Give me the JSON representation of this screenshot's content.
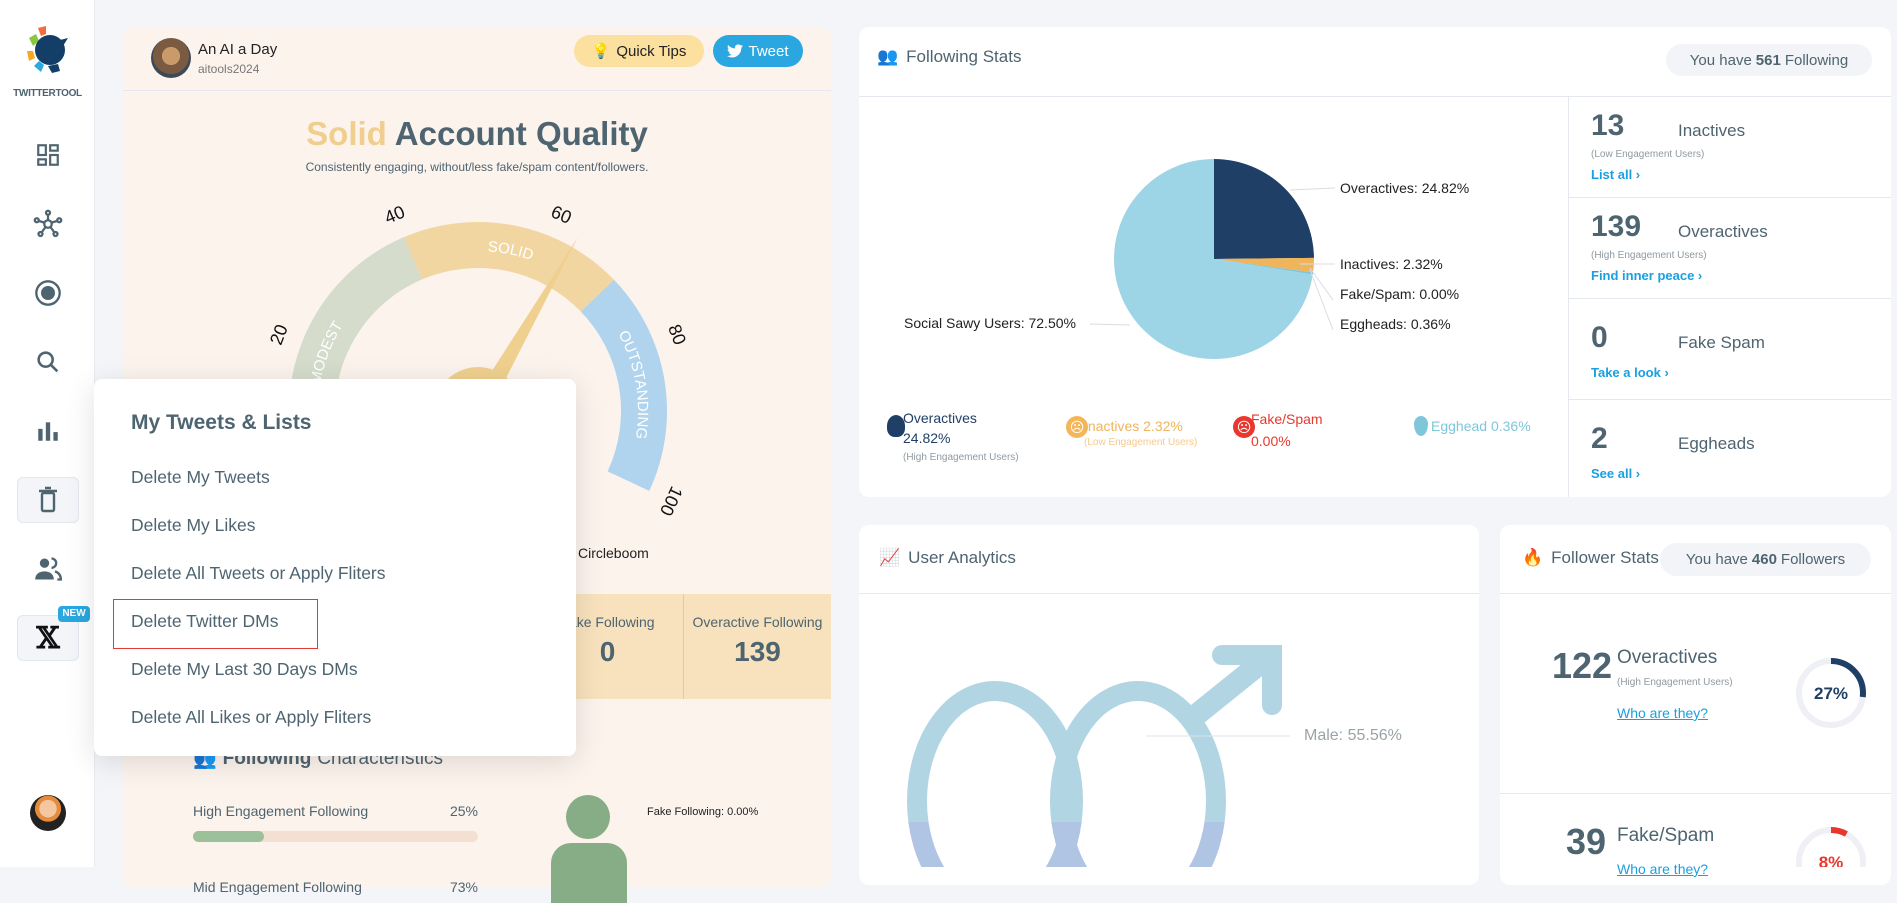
{
  "sidebar": {
    "logo_text": "TWITTERTOOL",
    "new_badge": "NEW",
    "items": [
      "dashboard",
      "network",
      "circle",
      "search",
      "analytics",
      "delete",
      "users",
      "x"
    ]
  },
  "profile": {
    "name": "An AI a Day",
    "handle": "aitools2024",
    "quick_tips": "Quick Tips",
    "tweet": "Tweet"
  },
  "quality": {
    "word": "Solid",
    "title": "Account Quality",
    "subtitle": "Consistently engaging, without/less fake/spam content/followers.",
    "powered": "Circleboom"
  },
  "gauge": {
    "value": 63,
    "ticks": [
      "20",
      "40",
      "60",
      "80",
      "100"
    ],
    "segments": [
      {
        "label": "MODEST",
        "from": 0,
        "to": 40,
        "color": "#d5dccb"
      },
      {
        "label": "SOLID",
        "from": 40,
        "to": 70,
        "color": "#f2d6a2"
      },
      {
        "label": "OUTSTANDING",
        "from": 70,
        "to": 100,
        "color": "#b0d3ee"
      }
    ]
  },
  "quality_stats": [
    {
      "label": "Fake Following",
      "value": "0"
    },
    {
      "label": "Overactive Following",
      "value": "139"
    }
  ],
  "characteristics": {
    "title_bold": "Following",
    "title_rest": "Characteristics",
    "rows": [
      {
        "label": "High Engagement Following",
        "pct": "25%",
        "value": 25
      },
      {
        "label": "Mid Engagement Following",
        "pct": "73%",
        "value": 73
      }
    ],
    "fake_label": "Fake Following: 0.00%"
  },
  "popup": {
    "title": "My Tweets & Lists",
    "items": [
      "Delete My Tweets",
      "Delete My Likes",
      "Delete All Tweets or Apply Fliters",
      "Delete Twitter DMs",
      "Delete My Last 30 Days DMs",
      "Delete All Likes or Apply Fliters"
    ]
  },
  "following_stats": {
    "title": "Following Stats",
    "badge_pre": "You have",
    "badge_num": "561",
    "badge_post": "Following",
    "pie": [
      {
        "name": "Overactives",
        "value": 24.82,
        "color": "#1f3f66",
        "label": "Overactives: 24.82%"
      },
      {
        "name": "Inactives",
        "value": 2.32,
        "color": "#f0b55a",
        "label": "Inactives: 2.32%"
      },
      {
        "name": "Fake/Spam",
        "value": 0.0,
        "color": "#e8372c",
        "label": "Fake/Spam: 0.00%"
      },
      {
        "name": "Eggheads",
        "value": 0.36,
        "color": "#7fc6da",
        "label": "Eggheads: 0.36%"
      },
      {
        "name": "Social Savvy Users",
        "value": 72.5,
        "color": "#9dd5e6",
        "label": "Social Sawy Users: 72.50%"
      }
    ],
    "legend": {
      "over_name": "Overactives",
      "over_pct": "24.82%",
      "over_sub": "(High Engagement Users)",
      "inact": "Inactives 2.32%",
      "inact_sub": "(Low Engagement Users)",
      "fake_name": "Fake/Spam",
      "fake_pct": "0.00%",
      "egg": "Egghead 0.36%"
    },
    "side": [
      {
        "num": "13",
        "label": "Inactives",
        "sub": "(Low Engagement Users)",
        "link": "List all ›"
      },
      {
        "num": "139",
        "label": "Overactives",
        "sub": "(High Engagement Users)",
        "link": "Find inner peace ›"
      },
      {
        "num": "0",
        "label": "Fake Spam",
        "link": "Take a look ›"
      },
      {
        "num": "2",
        "label": "Eggheads",
        "link": "See all ›"
      }
    ]
  },
  "user_analytics": {
    "title": "User Analytics",
    "male_label": "Male: 55.56%"
  },
  "follower_stats": {
    "title": "Follower Stats",
    "badge_pre": "You have",
    "badge_num": "460",
    "badge_post": "Followers",
    "rows": [
      {
        "num": "122",
        "label": "Overactives",
        "sub": "(High Engagement Users)",
        "link": "Who are they?",
        "pct": "27%",
        "value": 27,
        "color": "#1f3f66"
      },
      {
        "num": "39",
        "label": "Fake/Spam",
        "link": "Who are they?",
        "pct": "8%",
        "value": 8,
        "color": "#e8372c"
      }
    ]
  }
}
